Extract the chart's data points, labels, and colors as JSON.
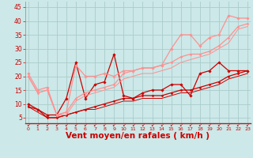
{
  "bg_color": "#cce8e8",
  "grid_color": "#aacccc",
  "xlabel": "Vent moyen/en rafales ( km/h )",
  "xlabel_color": "#cc0000",
  "xlabel_fontsize": 7.5,
  "yticks": [
    5,
    10,
    15,
    20,
    25,
    30,
    35,
    40,
    45
  ],
  "xticks": [
    0,
    1,
    2,
    3,
    4,
    5,
    6,
    7,
    8,
    9,
    10,
    11,
    12,
    13,
    14,
    15,
    16,
    17,
    18,
    19,
    20,
    21,
    22,
    23
  ],
  "xlim": [
    -0.3,
    23.3
  ],
  "ylim": [
    3,
    47
  ],
  "tick_color": "#cc0000",
  "series": [
    {
      "x": [
        0,
        1,
        2,
        3,
        4,
        5,
        6,
        7,
        8,
        9,
        10,
        11,
        12,
        13,
        14,
        15,
        16,
        17,
        18,
        19,
        20,
        21,
        22,
        23
      ],
      "y": [
        10,
        8,
        6,
        6,
        12,
        25,
        12,
        17,
        18,
        28,
        13,
        12,
        14,
        15,
        15,
        17,
        17,
        13,
        21,
        22,
        25,
        22,
        22,
        22
      ],
      "color": "#cc0000",
      "lw": 0.9,
      "marker": "D",
      "ms": 1.8,
      "alpha": 1.0
    },
    {
      "x": [
        0,
        1,
        2,
        3,
        4,
        5,
        6,
        7,
        8,
        9,
        10,
        11,
        12,
        13,
        14,
        15,
        16,
        17,
        18,
        19,
        20,
        21,
        22,
        23
      ],
      "y": [
        9,
        8,
        5,
        5,
        6,
        7,
        8,
        9,
        10,
        11,
        12,
        12,
        13,
        13,
        13,
        14,
        15,
        15,
        16,
        17,
        18,
        20,
        21,
        22
      ],
      "color": "#cc0000",
      "lw": 0.9,
      "marker": "D",
      "ms": 1.5,
      "alpha": 1.0
    },
    {
      "x": [
        0,
        1,
        2,
        3,
        4,
        5,
        6,
        7,
        8,
        9,
        10,
        11,
        12,
        13,
        14,
        15,
        16,
        17,
        18,
        19,
        20,
        21,
        22,
        23
      ],
      "y": [
        9,
        7,
        5,
        5,
        6,
        7,
        8,
        8,
        9,
        10,
        11,
        11,
        12,
        12,
        12,
        13,
        14,
        14,
        15,
        16,
        17,
        19,
        20,
        21
      ],
      "color": "#cc0000",
      "lw": 0.7,
      "marker": null,
      "ms": 0,
      "alpha": 1.0
    },
    {
      "x": [
        0,
        1,
        2,
        3,
        4,
        5,
        6,
        7,
        8,
        9,
        10,
        11,
        12,
        13,
        14,
        15,
        16,
        17,
        18,
        19,
        20,
        21,
        22,
        23
      ],
      "y": [
        21,
        15,
        16,
        6,
        7,
        24,
        20,
        20,
        21,
        20,
        22,
        22,
        23,
        23,
        24,
        30,
        35,
        35,
        31,
        34,
        35,
        42,
        41,
        41
      ],
      "color": "#ff9090",
      "lw": 0.9,
      "marker": "D",
      "ms": 1.8,
      "alpha": 1.0
    },
    {
      "x": [
        0,
        1,
        2,
        3,
        4,
        5,
        6,
        7,
        8,
        9,
        10,
        11,
        12,
        13,
        14,
        15,
        16,
        17,
        18,
        19,
        20,
        21,
        22,
        23
      ],
      "y": [
        20,
        14,
        15,
        6,
        7,
        12,
        14,
        15,
        16,
        17,
        21,
        22,
        23,
        23,
        24,
        25,
        27,
        28,
        28,
        29,
        31,
        34,
        38,
        39
      ],
      "color": "#ff9090",
      "lw": 0.9,
      "marker": "D",
      "ms": 1.5,
      "alpha": 1.0
    },
    {
      "x": [
        0,
        1,
        2,
        3,
        4,
        5,
        6,
        7,
        8,
        9,
        10,
        11,
        12,
        13,
        14,
        15,
        16,
        17,
        18,
        19,
        20,
        21,
        22,
        23
      ],
      "y": [
        20,
        14,
        15,
        6,
        6,
        11,
        13,
        14,
        15,
        16,
        19,
        20,
        21,
        21,
        22,
        23,
        25,
        26,
        27,
        28,
        30,
        32,
        37,
        38
      ],
      "color": "#ff9090",
      "lw": 0.7,
      "marker": null,
      "ms": 0,
      "alpha": 1.0
    }
  ]
}
